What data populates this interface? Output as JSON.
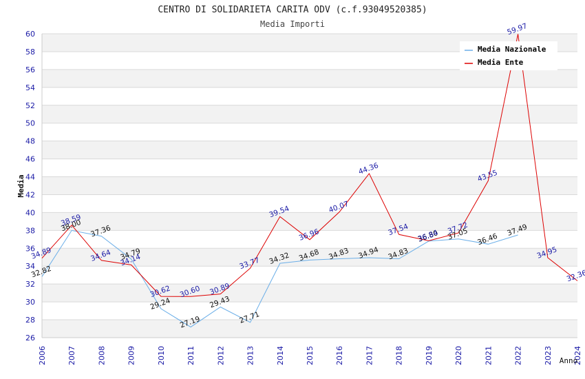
{
  "chart_data": {
    "type": "line",
    "title": "CENTRO DI SOLIDARIETA CARITA ODV (c.f.93049520385)",
    "subtitle": "Media Importi",
    "xlabel": "Anno",
    "ylabel": "Media",
    "ylim": [
      26,
      60
    ],
    "y_ticks": [
      "26",
      "28",
      "30",
      "32",
      "34",
      "36",
      "38",
      "40",
      "42",
      "44",
      "46",
      "48",
      "50",
      "52",
      "54",
      "56",
      "58",
      "60"
    ],
    "categories": [
      "2006",
      "2007",
      "2008",
      "2009",
      "2010",
      "2011",
      "2012",
      "2013",
      "2014",
      "2015",
      "2016",
      "2017",
      "2018",
      "2019",
      "2020",
      "2021",
      "2022",
      "2023",
      "2024"
    ],
    "grid": true,
    "legend_position": "top-right",
    "series": [
      {
        "name": "Media Nazionale",
        "color": "#6aaee8",
        "label_color": "#111111",
        "values": [
          32.82,
          38.0,
          37.36,
          34.79,
          29.24,
          27.19,
          29.43,
          27.71,
          34.32,
          34.68,
          34.83,
          34.94,
          34.83,
          36.8,
          37.05,
          36.46,
          37.49,
          null,
          null
        ],
        "labels": [
          "32.82",
          "38.00",
          "37.36",
          "34.79",
          "29.24",
          "27.19",
          "29.43",
          "27.71",
          "34.32",
          "34.68",
          "34.83",
          "34.94",
          "34.83",
          "36.80",
          "37.05",
          "36.46",
          "37.49",
          "",
          ""
        ]
      },
      {
        "name": "Media Ente",
        "color": "#dd0000",
        "label_color": "#1a1aa6",
        "values": [
          34.89,
          38.59,
          34.64,
          34.14,
          30.62,
          30.6,
          30.89,
          33.77,
          39.54,
          36.96,
          40.07,
          44.36,
          37.54,
          36.84,
          37.72,
          43.55,
          59.97,
          34.95,
          32.36
        ],
        "labels": [
          "34.89",
          "38.59",
          "34.64",
          "34.14",
          "30.62",
          "30.60",
          "30.89",
          "33.77",
          "39.54",
          "36.96",
          "40.07",
          "44.36",
          "37.54",
          "36.84",
          "37.72",
          "43.55",
          "59.97",
          "34.95",
          "32.36"
        ]
      }
    ]
  }
}
